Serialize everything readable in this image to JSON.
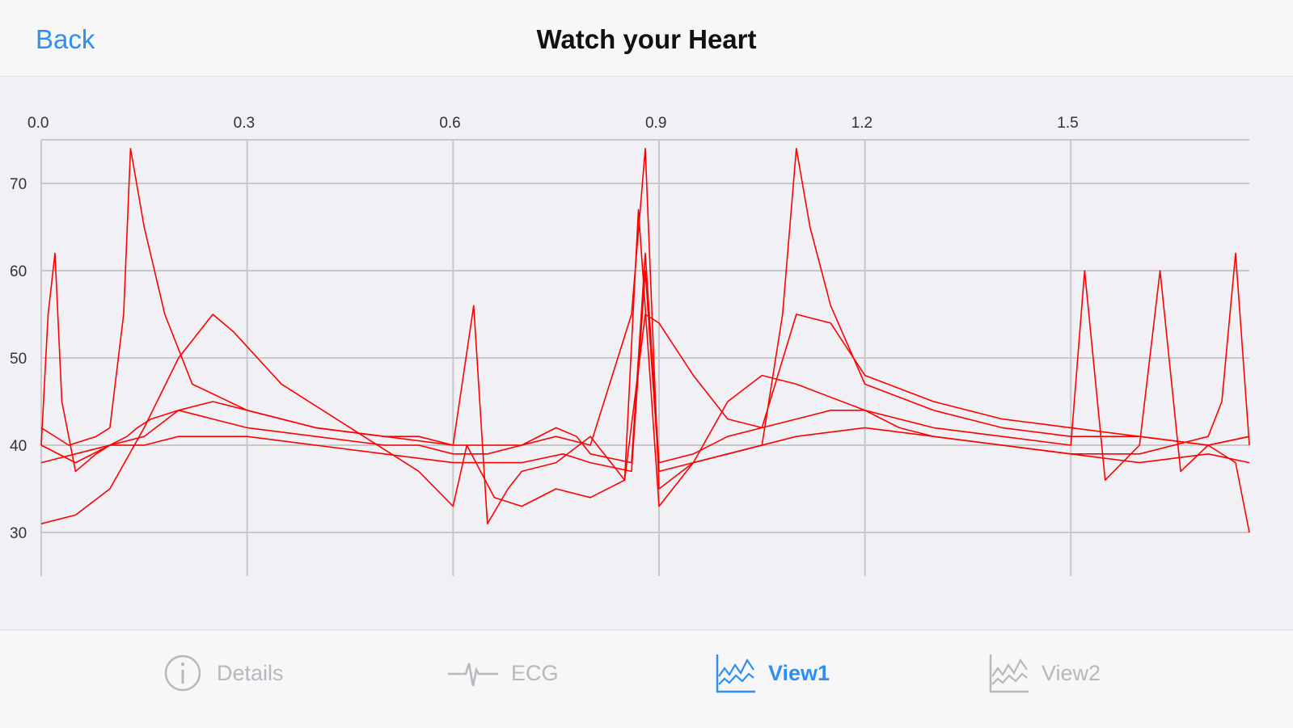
{
  "nav": {
    "back_label": "Back",
    "title": "Watch your Heart"
  },
  "colors": {
    "accent": "#2f8ef4",
    "series": "#ff0000",
    "grid": "#c8c8cc",
    "inactive": "#b8b8bc"
  },
  "tabs": [
    {
      "label": "Details",
      "icon": "info-icon",
      "active": false
    },
    {
      "label": "ECG",
      "icon": "ecg-pulse-icon",
      "active": false
    },
    {
      "label": "View1",
      "icon": "area-chart-icon",
      "active": true
    },
    {
      "label": "View2",
      "icon": "area-chart-icon",
      "active": false
    }
  ],
  "chart_data": {
    "type": "line",
    "title": "",
    "xlabel": "",
    "ylabel": "",
    "xlim": [
      0.0,
      1.76
    ],
    "ylim": [
      25,
      75
    ],
    "x_ticks": [
      0.0,
      0.3,
      0.6,
      0.9,
      1.2,
      1.5
    ],
    "x_tick_labels": [
      "0.0",
      "0.3",
      "0.6",
      "0.9",
      "1.2",
      "1.5"
    ],
    "y_ticks": [
      30,
      40,
      50,
      60,
      70
    ],
    "y_tick_labels": [
      "30",
      "40",
      "50",
      "60",
      "70"
    ],
    "x_axis_position": "top",
    "grid": true,
    "legend": "none",
    "note_series": "about 25 overlapping beat traces, all red",
    "series": [
      {
        "x": [
          0.0,
          0.01,
          0.02,
          0.03,
          0.05,
          0.08,
          0.1,
          0.125,
          0.14,
          0.16,
          0.2,
          0.25,
          0.3,
          0.4,
          0.5,
          0.55,
          0.6,
          0.65,
          0.7,
          0.75,
          0.78,
          0.8,
          0.86,
          0.88,
          0.9,
          0.95,
          1.0,
          1.05,
          1.1,
          1.15,
          1.2,
          1.25,
          1.3,
          1.4,
          1.5,
          1.6,
          1.65,
          1.7,
          1.72,
          1.74,
          1.76
        ],
        "y": [
          40,
          55,
          62,
          45,
          37,
          39,
          40,
          41,
          42,
          43,
          44,
          43,
          42,
          41,
          40,
          40,
          39,
          39,
          40,
          42,
          41,
          39,
          38,
          62,
          38,
          39,
          41,
          42,
          43,
          44,
          44,
          42,
          41,
          40,
          39,
          39,
          40,
          41,
          45,
          62,
          40
        ]
      },
      {
        "x": [
          0.0,
          0.04,
          0.08,
          0.1,
          0.12,
          0.13,
          0.15,
          0.18,
          0.22,
          0.3,
          0.4,
          0.5,
          0.6,
          0.7,
          0.75,
          0.8,
          0.86,
          0.88,
          0.9,
          0.95,
          1.0,
          1.05,
          1.08,
          1.1,
          1.12,
          1.15,
          1.2,
          1.3,
          1.4,
          1.5,
          1.6,
          1.7,
          1.76
        ],
        "y": [
          42,
          40,
          41,
          42,
          55,
          74,
          65,
          55,
          47,
          44,
          42,
          41,
          40,
          40,
          41,
          40,
          55,
          74,
          35,
          38,
          39,
          40,
          55,
          74,
          65,
          56,
          47,
          44,
          42,
          41,
          41,
          40,
          41
        ]
      },
      {
        "x": [
          0.0,
          0.05,
          0.1,
          0.15,
          0.2,
          0.25,
          0.3,
          0.4,
          0.5,
          0.55,
          0.6,
          0.63,
          0.65,
          0.68,
          0.7,
          0.75,
          0.8,
          0.85,
          0.87,
          0.9,
          0.95,
          1.0,
          1.05,
          1.1,
          1.2,
          1.3,
          1.4,
          1.5,
          1.52,
          1.55,
          1.6,
          1.63,
          1.66,
          1.7,
          1.74,
          1.76
        ],
        "y": [
          40,
          38,
          40,
          41,
          44,
          45,
          44,
          42,
          41,
          41,
          40,
          56,
          31,
          35,
          37,
          38,
          41,
          36,
          67,
          33,
          38,
          45,
          48,
          47,
          44,
          42,
          41,
          40,
          60,
          36,
          40,
          60,
          37,
          40,
          38,
          30
        ]
      },
      {
        "x": [
          0.0,
          0.05,
          0.1,
          0.15,
          0.2,
          0.25,
          0.28,
          0.35,
          0.45,
          0.55,
          0.6,
          0.62,
          0.66,
          0.7,
          0.75,
          0.8,
          0.85,
          0.88,
          0.9,
          0.95,
          1.0,
          1.05,
          1.1,
          1.15,
          1.2,
          1.3,
          1.4,
          1.5,
          1.6,
          1.7,
          1.76
        ],
        "y": [
          31,
          32,
          35,
          42,
          50,
          55,
          53,
          47,
          42,
          37,
          33,
          40,
          34,
          33,
          35,
          34,
          36,
          55,
          54,
          48,
          43,
          42,
          55,
          54,
          48,
          45,
          43,
          42,
          41,
          40,
          41
        ]
      },
      {
        "x": [
          0.0,
          0.05,
          0.1,
          0.15,
          0.2,
          0.3,
          0.4,
          0.5,
          0.6,
          0.7,
          0.76,
          0.8,
          0.86,
          0.88,
          0.9,
          0.95,
          1.0,
          1.1,
          1.2,
          1.3,
          1.4,
          1.5,
          1.6,
          1.7,
          1.76
        ],
        "y": [
          38,
          39,
          40,
          40,
          41,
          41,
          40,
          39,
          38,
          38,
          39,
          38,
          37,
          60,
          37,
          38,
          39,
          41,
          42,
          41,
          40,
          39,
          38,
          39,
          38
        ]
      }
    ]
  }
}
